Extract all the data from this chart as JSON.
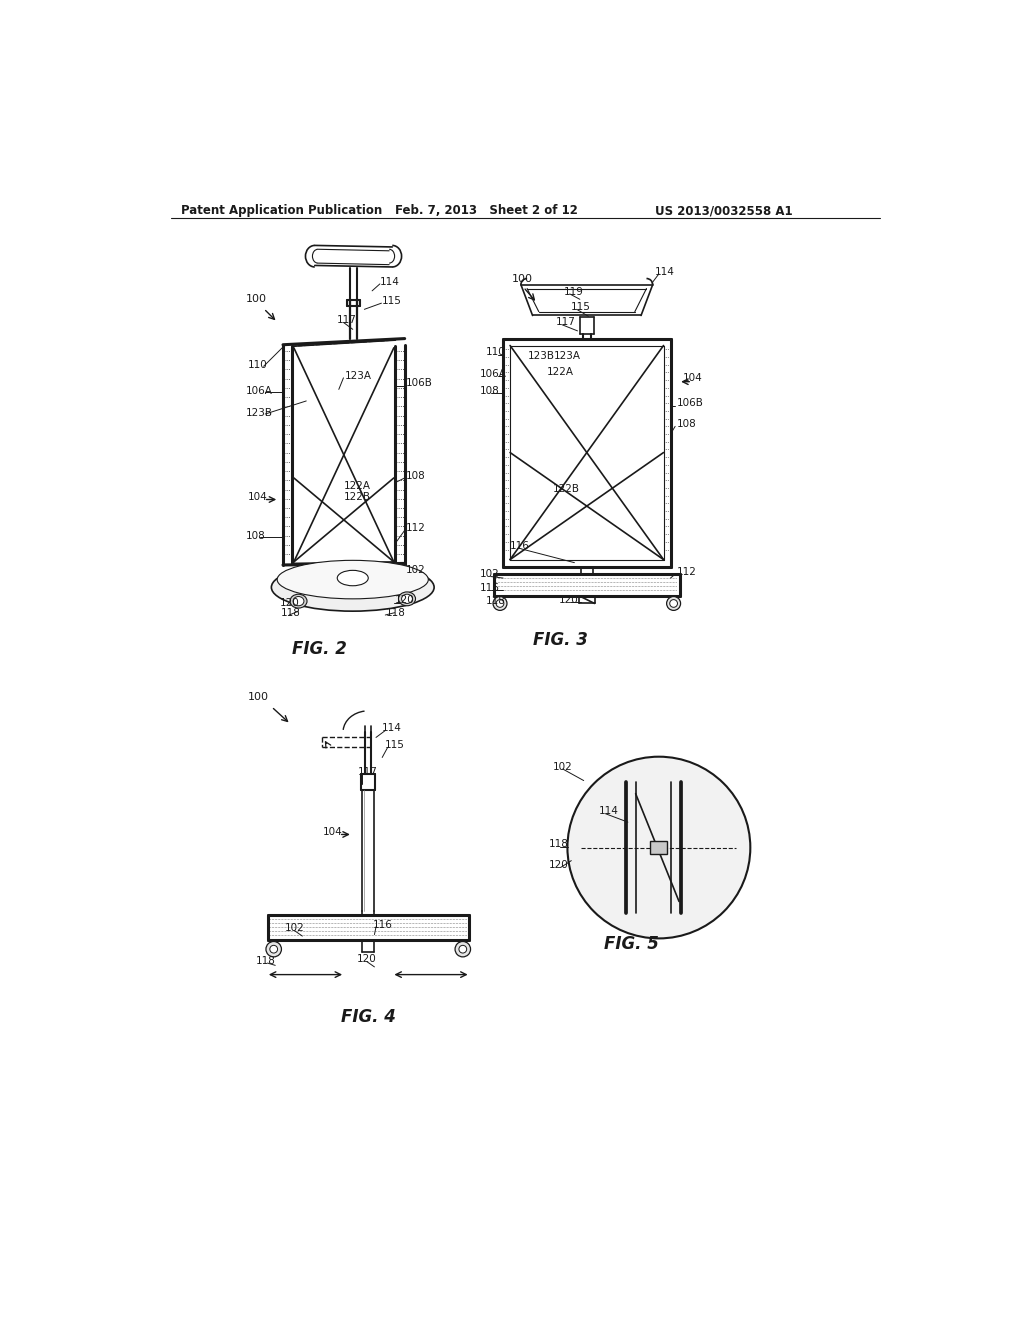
{
  "title_left": "Patent Application Publication",
  "title_mid": "Feb. 7, 2013   Sheet 2 of 12",
  "title_right": "US 2013/0032558 A1",
  "fig2_label": "FIG. 2",
  "fig3_label": "FIG. 3",
  "fig4_label": "FIG. 4",
  "fig5_label": "FIG. 5",
  "bg_color": "#ffffff",
  "line_color": "#1a1a1a"
}
